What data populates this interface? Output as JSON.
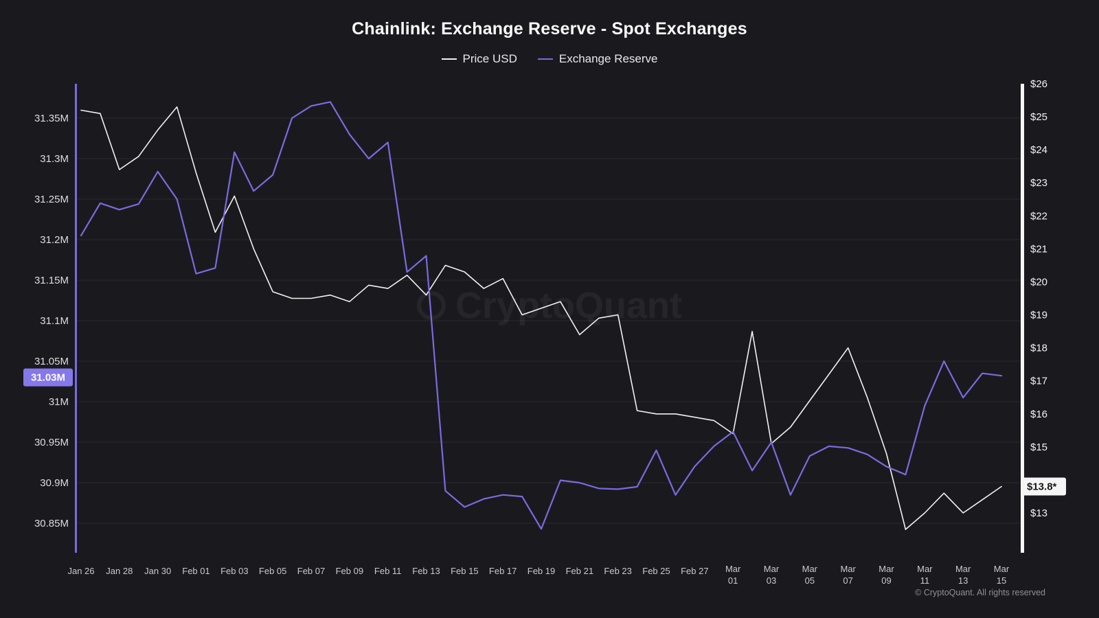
{
  "title": "Chainlink: Exchange Reserve - Spot Exchanges",
  "legend": [
    {
      "label": "Price USD",
      "color": "#f2f2f2"
    },
    {
      "label": "Exchange Reserve",
      "color": "#7a6be0"
    }
  ],
  "watermark": "CryptoQuant",
  "copyright": "© CryptoQuant. All rights reserved",
  "colors": {
    "background": "#1a1a1e",
    "price": "#f2f2f2",
    "reserve": "#7a6be0",
    "badge": "#8578ea",
    "grid": "rgba(255,255,255,0.07)"
  },
  "left_axis": {
    "unit": "M",
    "ticks": [
      {
        "label": "31.35M",
        "value": 31.35
      },
      {
        "label": "31.3M",
        "value": 31.3
      },
      {
        "label": "31.25M",
        "value": 31.25
      },
      {
        "label": "31.2M",
        "value": 31.2
      },
      {
        "label": "31.15M",
        "value": 31.15
      },
      {
        "label": "31.1M",
        "value": 31.1
      },
      {
        "label": "31.05M",
        "value": 31.05
      },
      {
        "label": "31M",
        "value": 31.0
      },
      {
        "label": "30.95M",
        "value": 30.95
      },
      {
        "label": "30.9M",
        "value": 30.9
      },
      {
        "label": "30.85M",
        "value": 30.85
      }
    ],
    "badge": {
      "label": "31.03M",
      "value": 31.03
    }
  },
  "right_axis": {
    "unit": "USD",
    "ticks": [
      {
        "label": "$26",
        "value": 26
      },
      {
        "label": "$25",
        "value": 25
      },
      {
        "label": "$24",
        "value": 24
      },
      {
        "label": "$23",
        "value": 23
      },
      {
        "label": "$22",
        "value": 22
      },
      {
        "label": "$21",
        "value": 21
      },
      {
        "label": "$20",
        "value": 20
      },
      {
        "label": "$19",
        "value": 19
      },
      {
        "label": "$18",
        "value": 18
      },
      {
        "label": "$17",
        "value": 17
      },
      {
        "label": "$16",
        "value": 16
      },
      {
        "label": "$15",
        "value": 15
      },
      {
        "label": "$13",
        "value": 13
      }
    ],
    "badge": {
      "label": "$13.8*",
      "value": 13.8
    }
  },
  "chart_data": {
    "type": "line",
    "title": "Chainlink: Exchange Reserve - Spot Exchanges",
    "x": [
      "Jan 26",
      "Jan 27",
      "Jan 28",
      "Jan 29",
      "Jan 30",
      "Jan 31",
      "Feb 01",
      "Feb 02",
      "Feb 03",
      "Feb 04",
      "Feb 05",
      "Feb 06",
      "Feb 07",
      "Feb 08",
      "Feb 09",
      "Feb 10",
      "Feb 11",
      "Feb 12",
      "Feb 13",
      "Feb 14",
      "Feb 15",
      "Feb 16",
      "Feb 17",
      "Feb 18",
      "Feb 19",
      "Feb 20",
      "Feb 21",
      "Feb 22",
      "Feb 23",
      "Feb 24",
      "Feb 25",
      "Feb 26",
      "Feb 27",
      "Feb 28",
      "Mar 01",
      "Mar 02",
      "Mar 03",
      "Mar 04",
      "Mar 05",
      "Mar 06",
      "Mar 07",
      "Mar 08",
      "Mar 09",
      "Mar 10",
      "Mar 11",
      "Mar 12",
      "Mar 13",
      "Mar 14",
      "Mar 15"
    ],
    "x_tick_indices": [
      0,
      2,
      4,
      6,
      8,
      10,
      12,
      14,
      16,
      18,
      20,
      22,
      24,
      26,
      28,
      30,
      32,
      34,
      36,
      38,
      40,
      42,
      44,
      46,
      48
    ],
    "series": [
      {
        "name": "Price USD",
        "axis": "right",
        "color": "#f2f2f2",
        "values": [
          25.2,
          25.1,
          23.4,
          23.8,
          24.6,
          25.3,
          23.3,
          21.5,
          22.6,
          21.0,
          19.7,
          19.5,
          19.5,
          19.6,
          19.4,
          19.9,
          19.8,
          20.2,
          19.6,
          20.5,
          20.3,
          19.8,
          20.1,
          19.0,
          19.2,
          19.4,
          18.4,
          18.9,
          19.0,
          16.1,
          16.0,
          16.0,
          15.9,
          15.8,
          15.4,
          18.5,
          15.1,
          15.6,
          16.4,
          17.2,
          18.0,
          16.5,
          14.8,
          12.5,
          13.0,
          13.6,
          13.0,
          13.4,
          13.8
        ]
      },
      {
        "name": "Exchange Reserve",
        "axis": "left",
        "color": "#7a6be0",
        "values": [
          31.205,
          31.245,
          31.237,
          31.244,
          31.284,
          31.25,
          31.158,
          31.165,
          31.308,
          31.26,
          31.28,
          31.35,
          31.365,
          31.37,
          31.33,
          31.3,
          31.32,
          31.16,
          31.18,
          30.89,
          30.87,
          30.88,
          30.885,
          30.883,
          30.843,
          30.903,
          30.9,
          30.893,
          30.892,
          30.895,
          30.94,
          30.885,
          30.92,
          30.945,
          30.963,
          30.915,
          30.95,
          30.885,
          30.933,
          30.945,
          30.943,
          30.935,
          30.92,
          30.91,
          30.995,
          31.05,
          31.005,
          31.035,
          31.032
        ]
      }
    ],
    "left_ylim": [
      30.815,
      31.39
    ],
    "right_ylim": [
      11.8,
      26
    ],
    "grid": "horizontal",
    "legend_position": "top"
  }
}
